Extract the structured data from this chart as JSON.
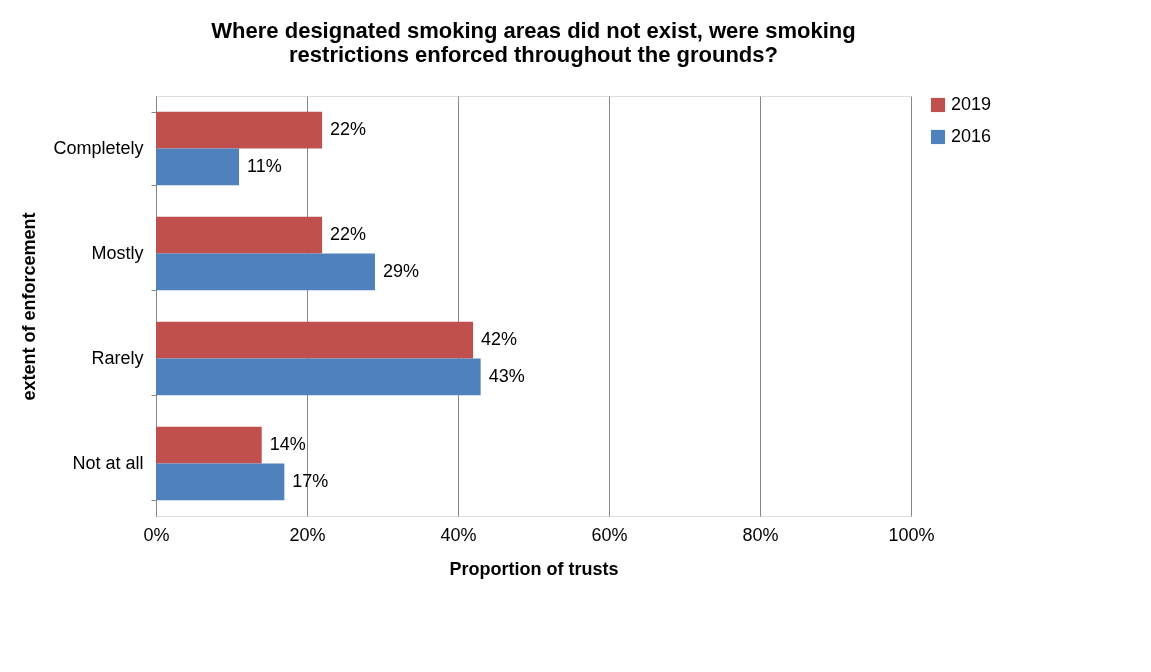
{
  "chart_data": {
    "type": "bar",
    "orientation": "horizontal",
    "title": "Where designated smoking areas did not exist, were smoking\nrestrictions enforced throughout the grounds?",
    "xlabel": "Proportion of trusts",
    "ylabel": "extent of enforcement",
    "categories": [
      "Completely",
      "Mostly",
      "Rarely",
      "Not at all"
    ],
    "series": [
      {
        "name": "2019",
        "color": "#c0504d",
        "values": [
          22,
          22,
          42,
          14
        ],
        "value_labels": [
          "22%",
          "22%",
          "42%",
          "14%"
        ]
      },
      {
        "name": "2016",
        "color": "#4f81bd",
        "values": [
          11,
          29,
          43,
          17
        ],
        "value_labels": [
          "11%",
          "29%",
          "43%",
          "17%"
        ]
      }
    ],
    "xlim": [
      0,
      100
    ],
    "xticks": [
      {
        "value": 0,
        "label": "0%"
      },
      {
        "value": 20,
        "label": "20%"
      },
      {
        "value": 40,
        "label": "40%"
      },
      {
        "value": 60,
        "label": "60%"
      },
      {
        "value": 80,
        "label": "80%"
      },
      {
        "value": 100,
        "label": "100%"
      }
    ],
    "grid": "x",
    "legend": "right"
  }
}
